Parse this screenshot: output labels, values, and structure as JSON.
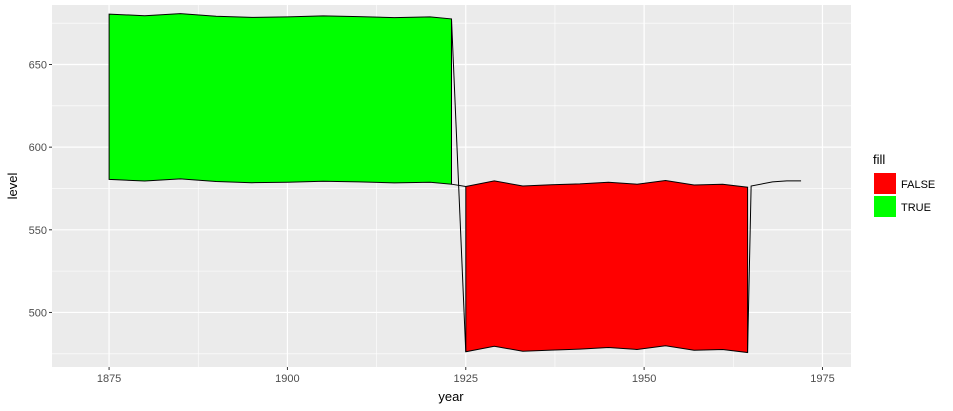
{
  "chart_data": {
    "type": "area",
    "xlabel": "year",
    "ylabel": "level",
    "xlim": [
      1867,
      1979
    ],
    "ylim": [
      467,
      686
    ],
    "x_ticks": [
      1875,
      1900,
      1925,
      1950,
      1975
    ],
    "y_ticks": [
      500,
      550,
      600,
      650
    ],
    "grid": true,
    "legend": {
      "title": "fill",
      "position": "right",
      "entries": [
        {
          "label": "FALSE",
          "color": "#ff0000"
        },
        {
          "label": "TRUE",
          "color": "#00ff00"
        }
      ]
    },
    "colors": {
      "panel": "#ebebeb",
      "grid": "#ffffff",
      "outline": "#000000"
    },
    "series": [
      {
        "fill": "TRUE",
        "color": "#00ff00",
        "x": [
          1875,
          1880,
          1885,
          1890,
          1895,
          1900,
          1905,
          1910,
          1915,
          1920,
          1923
        ],
        "lower": [
          580.5,
          579.5,
          580.8,
          579.2,
          578.5,
          578.8,
          579.4,
          579.0,
          578.4,
          578.8,
          577.6
        ],
        "upper": [
          680.5,
          679.5,
          680.8,
          679.2,
          678.5,
          678.8,
          679.4,
          679.0,
          678.4,
          678.8,
          677.6
        ]
      },
      {
        "fill": "FALSE",
        "color": "#ff0000",
        "x": [
          1925,
          1929,
          1933,
          1937,
          1941,
          1945,
          1949,
          1953,
          1957,
          1961,
          1964.5
        ],
        "lower": [
          476.2,
          479.6,
          476.5,
          477.2,
          477.8,
          478.8,
          477.6,
          479.8,
          477.1,
          477.6,
          475.8
        ],
        "upper": [
          576.2,
          579.6,
          576.5,
          577.2,
          577.8,
          578.8,
          577.6,
          579.8,
          577.1,
          577.6,
          575.8
        ]
      }
    ],
    "tail_line": {
      "x": [
        1965,
        1968,
        1970,
        1972
      ],
      "y": [
        576.5,
        579.0,
        579.6,
        579.6
      ]
    }
  }
}
